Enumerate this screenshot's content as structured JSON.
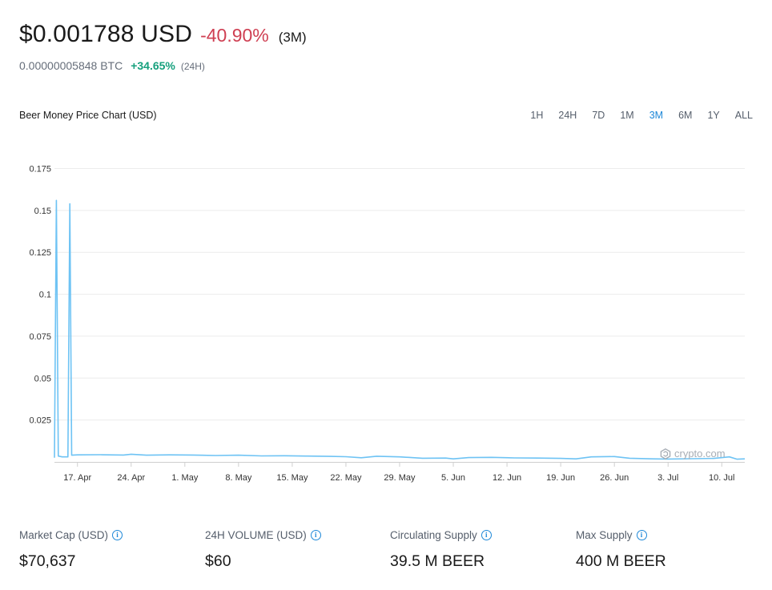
{
  "header": {
    "price": "$0.001788 USD",
    "change": "-40.90%",
    "period": "(3M)",
    "btc_price": "0.00000005848 BTC",
    "btc_change": "+34.65%",
    "btc_period": "(24H)"
  },
  "chart_title": "Beer Money Price Chart (USD)",
  "ranges": [
    "1H",
    "24H",
    "7D",
    "1M",
    "3M",
    "6M",
    "1Y",
    "ALL"
  ],
  "active_range": "3M",
  "watermark": "crypto.com",
  "colors": {
    "line": "#6ec3f4",
    "negative": "#cf3f52",
    "positive": "#15a07d",
    "accent": "#1e88d8"
  },
  "chart_data": {
    "type": "line",
    "title": "Beer Money Price Chart (USD)",
    "yticks": [
      "0.175",
      "0.15",
      "0.125",
      "0.1",
      "0.075",
      "0.05",
      "0.025"
    ],
    "ylim": [
      0,
      0.18
    ],
    "xticks": [
      "17. Apr",
      "24. Apr",
      "1. May",
      "8. May",
      "15. May",
      "22. May",
      "29. May",
      "5. Jun",
      "12. Jun",
      "19. Jun",
      "26. Jun",
      "3. Jul",
      "10. Jul"
    ],
    "x_start": "2023-04-14",
    "x_end": "2023-07-13",
    "grid": true,
    "series": [
      {
        "points": [
          [
            "2023-04-14",
            0.0025
          ],
          [
            "2023-04-14T06",
            0.156
          ],
          [
            "2023-04-14T12",
            0.0035
          ],
          [
            "2023-04-15",
            0.003
          ],
          [
            "2023-04-15T18",
            0.003
          ],
          [
            "2023-04-16",
            0.154
          ],
          [
            "2023-04-16T06",
            0.004
          ],
          [
            "2023-04-17",
            0.0042
          ],
          [
            "2023-04-20",
            0.0043
          ],
          [
            "2023-04-23",
            0.0041
          ],
          [
            "2023-04-24",
            0.0046
          ],
          [
            "2023-04-26",
            0.004
          ],
          [
            "2023-04-29",
            0.0042
          ],
          [
            "2023-05-02",
            0.0041
          ],
          [
            "2023-05-05",
            0.0038
          ],
          [
            "2023-05-08",
            0.004
          ],
          [
            "2023-05-11",
            0.0036
          ],
          [
            "2023-05-14",
            0.0037
          ],
          [
            "2023-05-17",
            0.0035
          ],
          [
            "2023-05-20",
            0.0033
          ],
          [
            "2023-05-22",
            0.0031
          ],
          [
            "2023-05-24",
            0.0025
          ],
          [
            "2023-05-26",
            0.0034
          ],
          [
            "2023-05-29",
            0.003
          ],
          [
            "2023-06-01",
            0.0022
          ],
          [
            "2023-06-04",
            0.0023
          ],
          [
            "2023-06-05",
            0.0018
          ],
          [
            "2023-06-07",
            0.0026
          ],
          [
            "2023-06-10",
            0.0027
          ],
          [
            "2023-06-13",
            0.0024
          ],
          [
            "2023-06-16",
            0.0023
          ],
          [
            "2023-06-19",
            0.0021
          ],
          [
            "2023-06-21",
            0.0018
          ],
          [
            "2023-06-23",
            0.003
          ],
          [
            "2023-06-26",
            0.0032
          ],
          [
            "2023-06-28",
            0.0022
          ],
          [
            "2023-07-01",
            0.0018
          ],
          [
            "2023-07-03",
            0.0017
          ],
          [
            "2023-07-06",
            0.0019
          ],
          [
            "2023-07-09",
            0.0021
          ],
          [
            "2023-07-11",
            0.003
          ],
          [
            "2023-07-12",
            0.0016
          ],
          [
            "2023-07-13",
            0.0018
          ]
        ]
      }
    ]
  },
  "stats": [
    {
      "label": "Market Cap (USD)",
      "value": "$70,637"
    },
    {
      "label": "24H VOLUME (USD)",
      "value": "$60"
    },
    {
      "label": "Circulating Supply",
      "value": "39.5 M BEER"
    },
    {
      "label": "Max Supply",
      "value": "400 M BEER"
    }
  ]
}
